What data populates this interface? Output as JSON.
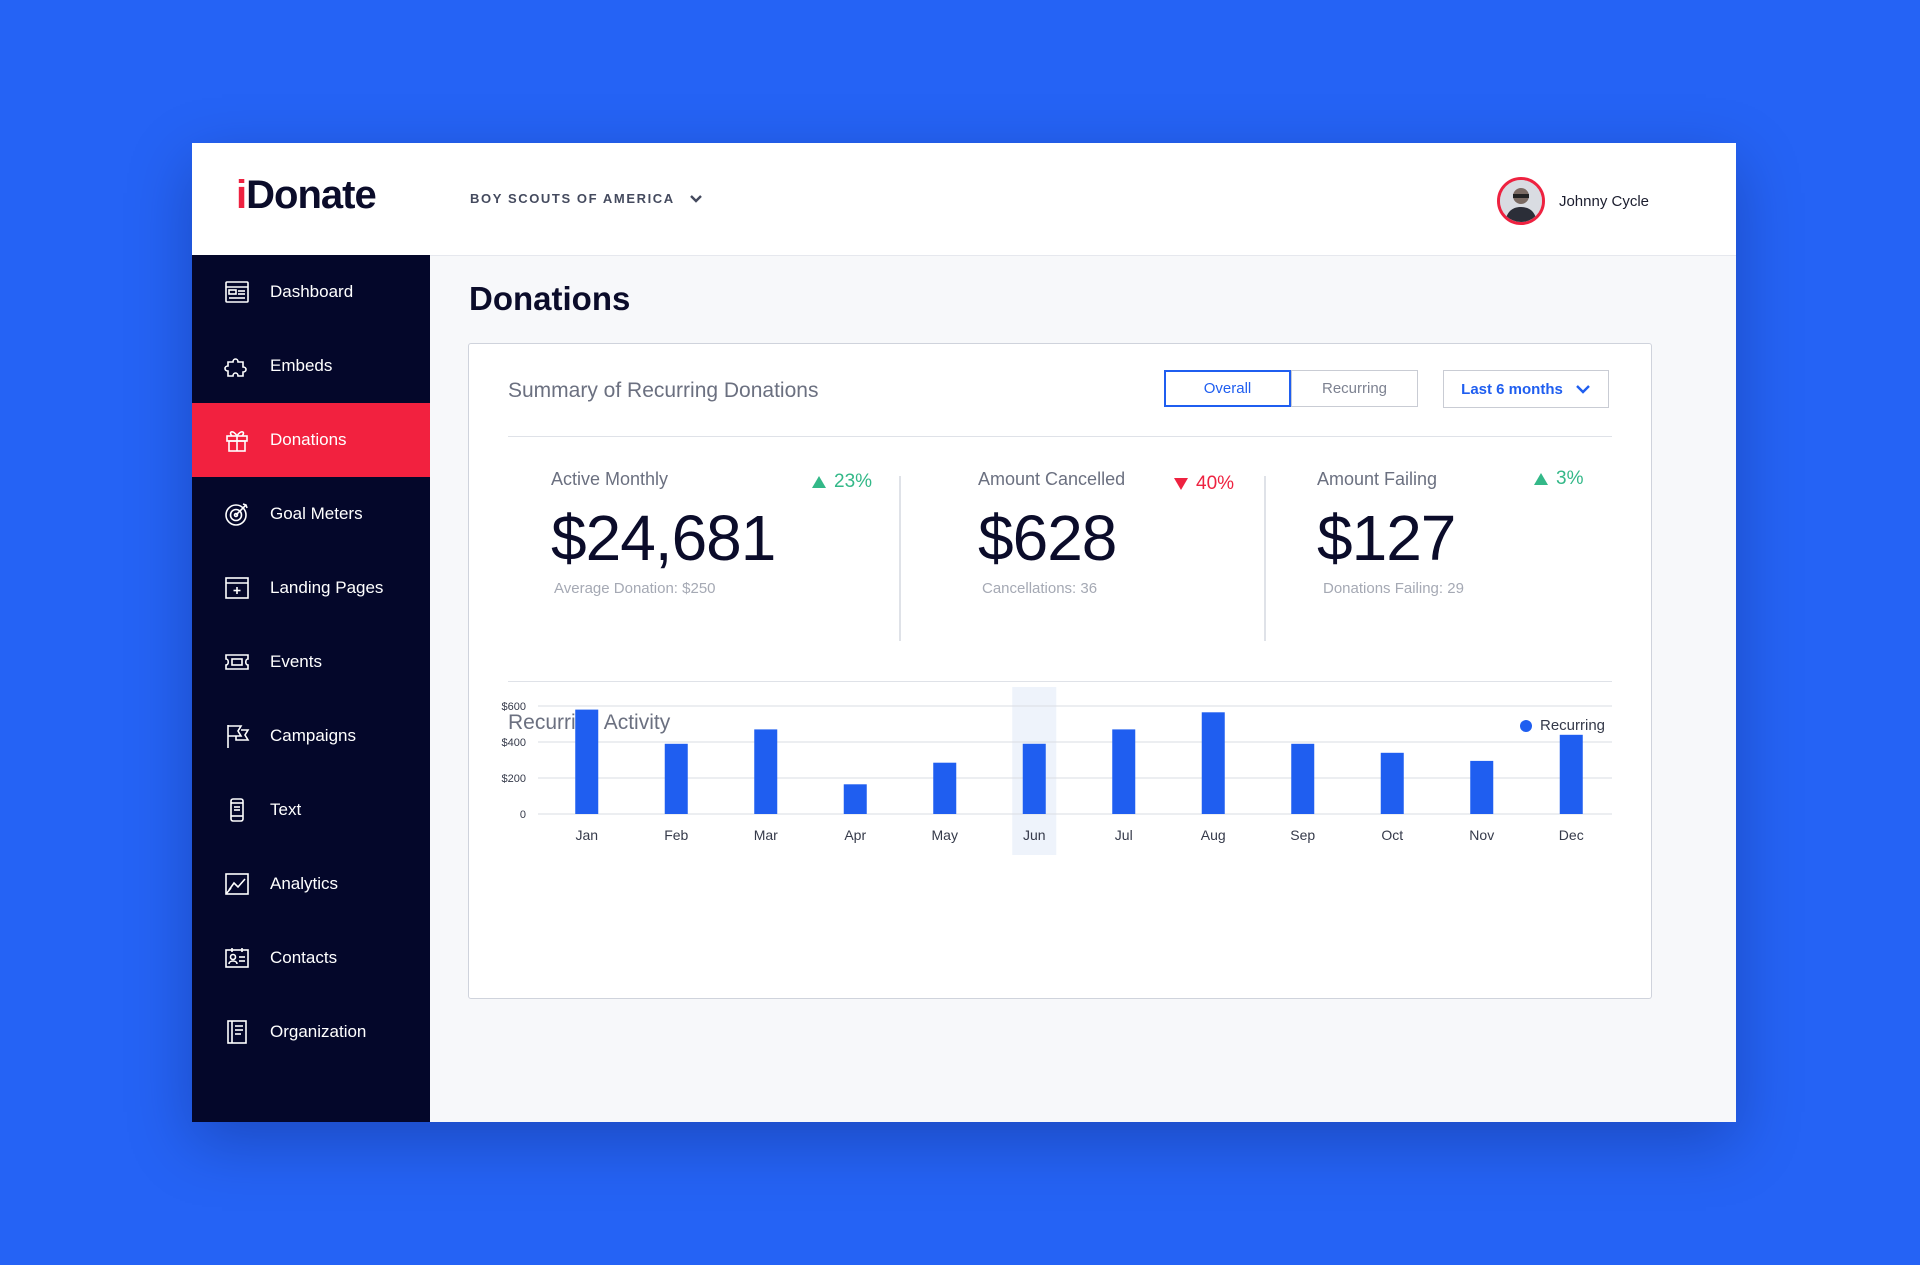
{
  "app": {
    "logo_i": "i",
    "logo_rest": "Donate"
  },
  "org_selector": {
    "label": "BOY SCOUTS OF AMERICA",
    "icon": "chevron-down-icon"
  },
  "user": {
    "name": "Johnny Cycle"
  },
  "sidebar": {
    "active": "Donations",
    "items": [
      {
        "label": "Dashboard",
        "icon": "dashboard-icon"
      },
      {
        "label": "Embeds",
        "icon": "puzzle-icon"
      },
      {
        "label": "Donations",
        "icon": "gift-icon"
      },
      {
        "label": "Goal Meters",
        "icon": "target-icon"
      },
      {
        "label": "Landing Pages",
        "icon": "landing-page-icon"
      },
      {
        "label": "Events",
        "icon": "ticket-icon"
      },
      {
        "label": "Campaigns",
        "icon": "flag-icon"
      },
      {
        "label": "Text",
        "icon": "phone-icon"
      },
      {
        "label": "Analytics",
        "icon": "analytics-icon"
      },
      {
        "label": "Contacts",
        "icon": "contact-card-icon"
      },
      {
        "label": "Organization",
        "icon": "notebook-icon"
      }
    ]
  },
  "main": {
    "title": "Donations",
    "summary": {
      "title": "Summary of Recurring Donations",
      "toggle": {
        "options": [
          "Overall",
          "Recurring"
        ],
        "selected": "Overall"
      },
      "range": {
        "label": "Last 6 months"
      },
      "stats": [
        {
          "label": "Active Monthly",
          "value": "$24,681",
          "sub": "Average Donation: $250",
          "delta": "23%",
          "trend": "up"
        },
        {
          "label": "Amount Cancelled",
          "value": "$628",
          "sub": "Cancellations: 36",
          "delta": "40%",
          "trend": "down"
        },
        {
          "label": "Amount Failing",
          "value": "$127",
          "sub": "Donations Failing: 29",
          "delta": "3%",
          "trend": "up"
        }
      ]
    },
    "activity": {
      "title": "Recurring Activity"
    }
  },
  "colors": {
    "accent": "#1f5ef0",
    "active_nav": "#f2213f",
    "sidebar": "#04072a",
    "up": "#33b888",
    "down": "#ee2240"
  },
  "chart_data": {
    "type": "bar",
    "title": "Recurring Activity",
    "categories": [
      "Jan",
      "Feb",
      "Mar",
      "Apr",
      "May",
      "Jun",
      "Jul",
      "Aug",
      "Sep",
      "Oct",
      "Nov",
      "Dec"
    ],
    "series": [
      {
        "name": "Recurring",
        "values": [
          580,
          390,
          470,
          165,
          285,
          390,
          470,
          565,
          390,
          340,
          295,
          440
        ]
      }
    ],
    "y_ticks": [
      "0",
      "$200",
      "$400",
      "$600"
    ],
    "ylim": [
      0,
      600
    ],
    "highlighted_category": "Jun",
    "legend": "top-right",
    "grid": true
  }
}
